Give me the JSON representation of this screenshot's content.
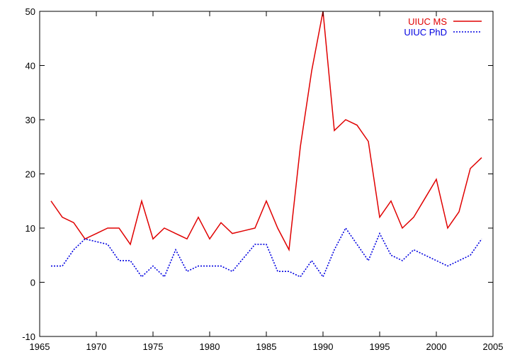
{
  "chart_data": {
    "type": "line",
    "title": "",
    "xlabel": "",
    "ylabel": "",
    "xlim": [
      1965,
      2005
    ],
    "ylim": [
      -10,
      50
    ],
    "xticks": [
      1965,
      1970,
      1975,
      1980,
      1985,
      1990,
      1995,
      2000,
      2005
    ],
    "yticks": [
      -10,
      0,
      10,
      20,
      30,
      40,
      50
    ],
    "grid": false,
    "legend_position": "top-right",
    "x": [
      1966,
      1967,
      1968,
      1969,
      1970,
      1971,
      1972,
      1973,
      1974,
      1975,
      1976,
      1977,
      1978,
      1979,
      1980,
      1981,
      1982,
      1983,
      1984,
      1985,
      1986,
      1987,
      1988,
      1989,
      1990,
      1991,
      1992,
      1993,
      1994,
      1995,
      1996,
      1997,
      1998,
      1999,
      2000,
      2001,
      2002,
      2003,
      2004
    ],
    "series": [
      {
        "name": "UIUC MS",
        "color": "#e00000",
        "style": "solid",
        "values": [
          15,
          12,
          11,
          8,
          9,
          10,
          10,
          7,
          15,
          8,
          10,
          9,
          8,
          12,
          8,
          11,
          9,
          9.5,
          10,
          15,
          10,
          6,
          25,
          39,
          50,
          28,
          30,
          29,
          26,
          12,
          15,
          10,
          12,
          15.5,
          19,
          10,
          13,
          21,
          23
        ]
      },
      {
        "name": "UIUC PhD",
        "color": "#0000e0",
        "style": "dotted",
        "values": [
          3,
          3,
          6,
          8,
          7.5,
          7,
          4,
          4,
          1,
          3,
          1,
          6,
          2,
          3,
          3,
          3,
          2,
          4.5,
          7,
          7,
          2,
          2,
          1,
          4,
          1,
          6,
          10,
          7,
          4,
          9,
          5,
          4,
          6,
          5,
          4,
          3,
          4,
          5,
          8
        ]
      }
    ]
  }
}
